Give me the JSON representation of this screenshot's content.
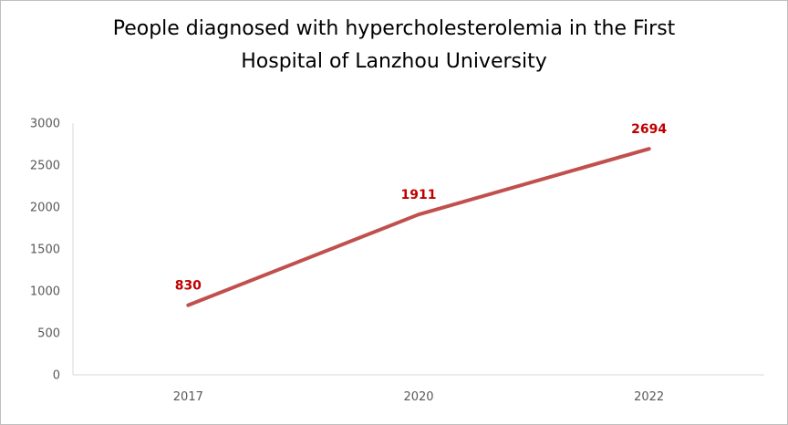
{
  "chart_data": {
    "type": "line",
    "title_lines": [
      "People diagnosed with hypercholesterolemia in the First",
      "Hospital of Lanzhou University"
    ],
    "categories": [
      "2017",
      "2020",
      "2022"
    ],
    "values": [
      830,
      1911,
      2694
    ],
    "data_labels": [
      "830",
      "1911",
      "2694"
    ],
    "y_ticks": [
      "0",
      "500",
      "1000",
      "1500",
      "2000",
      "2500",
      "3000"
    ],
    "ylim": [
      0,
      3000
    ],
    "grid": false,
    "drop_lines": true,
    "legend": "none",
    "colors": {
      "line": "#c0504d",
      "drop_line": "#f0a050",
      "data_label": "#c00000",
      "axis": "#d9d9d9"
    }
  }
}
